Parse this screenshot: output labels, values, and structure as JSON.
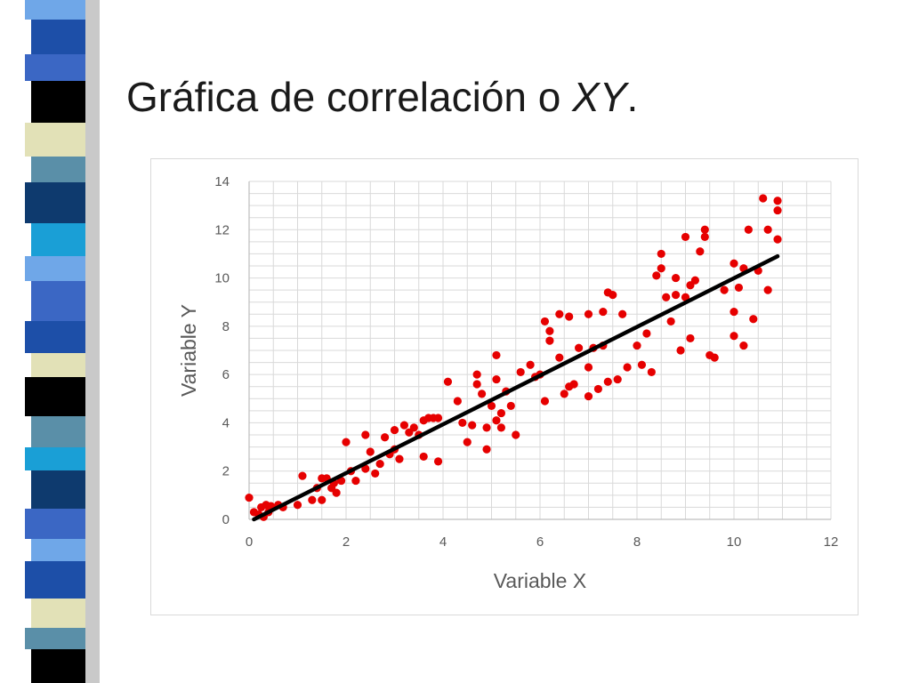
{
  "slide": {
    "title_main": "Gráfica de correlación o ",
    "title_italic": "XY",
    "title_end": "."
  },
  "colors": {
    "points": "#e60000",
    "trendline": "#000000",
    "grid": "#d9d9d9",
    "stripe": [
      "#3b67c4",
      "#6fa7e8",
      "#0e3a6e",
      "#1d4fa8",
      "#000000",
      "#e2e1b7",
      "#5a8fa8",
      "#1a9fd6"
    ]
  },
  "chart_data": {
    "type": "scatter",
    "xlabel": "Variable X",
    "ylabel": "Variable Y",
    "xlim": [
      0,
      12
    ],
    "ylim": [
      0,
      14
    ],
    "xticks": [
      "0",
      "2",
      "4",
      "6",
      "8",
      "10",
      "12"
    ],
    "yticks": [
      "0",
      "2",
      "4",
      "6",
      "8",
      "10",
      "12",
      "14"
    ],
    "grid": true,
    "legend": "none",
    "trendline": {
      "from": [
        0.1,
        0.0
      ],
      "to": [
        10.9,
        10.9
      ]
    },
    "points": [
      [
        0.0,
        0.9
      ],
      [
        0.1,
        0.3
      ],
      [
        0.2,
        0.2
      ],
      [
        0.25,
        0.5
      ],
      [
        0.3,
        0.1
      ],
      [
        0.35,
        0.6
      ],
      [
        0.4,
        0.3
      ],
      [
        0.45,
        0.55
      ],
      [
        0.6,
        0.6
      ],
      [
        0.7,
        0.5
      ],
      [
        1.0,
        0.6
      ],
      [
        1.1,
        1.8
      ],
      [
        1.3,
        0.8
      ],
      [
        1.4,
        1.3
      ],
      [
        1.5,
        0.8
      ],
      [
        1.5,
        1.7
      ],
      [
        1.6,
        1.7
      ],
      [
        1.7,
        1.3
      ],
      [
        1.75,
        1.5
      ],
      [
        1.8,
        1.1
      ],
      [
        1.9,
        1.6
      ],
      [
        2.0,
        3.2
      ],
      [
        2.1,
        2.0
      ],
      [
        2.2,
        1.6
      ],
      [
        2.4,
        2.1
      ],
      [
        2.4,
        3.5
      ],
      [
        2.5,
        2.8
      ],
      [
        2.6,
        1.9
      ],
      [
        2.7,
        2.3
      ],
      [
        2.8,
        3.4
      ],
      [
        2.9,
        2.7
      ],
      [
        3.0,
        3.7
      ],
      [
        3.0,
        2.9
      ],
      [
        3.1,
        2.5
      ],
      [
        3.2,
        3.9
      ],
      [
        3.3,
        3.6
      ],
      [
        3.4,
        3.8
      ],
      [
        3.5,
        3.5
      ],
      [
        3.6,
        2.6
      ],
      [
        3.6,
        4.1
      ],
      [
        3.7,
        4.2
      ],
      [
        3.8,
        4.2
      ],
      [
        3.9,
        4.2
      ],
      [
        3.9,
        2.4
      ],
      [
        4.1,
        5.7
      ],
      [
        4.3,
        4.9
      ],
      [
        4.4,
        4.0
      ],
      [
        4.5,
        3.2
      ],
      [
        4.6,
        3.9
      ],
      [
        4.7,
        5.6
      ],
      [
        4.7,
        6.0
      ],
      [
        4.8,
        5.2
      ],
      [
        4.9,
        2.9
      ],
      [
        4.9,
        3.8
      ],
      [
        5.0,
        4.7
      ],
      [
        5.1,
        4.1
      ],
      [
        5.1,
        5.8
      ],
      [
        5.1,
        6.8
      ],
      [
        5.2,
        4.4
      ],
      [
        5.2,
        3.8
      ],
      [
        5.3,
        5.3
      ],
      [
        5.4,
        4.7
      ],
      [
        5.5,
        3.5
      ],
      [
        5.6,
        6.1
      ],
      [
        5.8,
        6.4
      ],
      [
        5.9,
        5.9
      ],
      [
        6.0,
        6.0
      ],
      [
        6.1,
        8.2
      ],
      [
        6.1,
        4.9
      ],
      [
        6.2,
        7.8
      ],
      [
        6.2,
        7.4
      ],
      [
        6.4,
        6.7
      ],
      [
        6.4,
        8.5
      ],
      [
        6.5,
        5.2
      ],
      [
        6.6,
        8.4
      ],
      [
        6.6,
        5.5
      ],
      [
        6.7,
        5.6
      ],
      [
        6.8,
        7.1
      ],
      [
        7.0,
        8.5
      ],
      [
        7.0,
        5.1
      ],
      [
        7.0,
        6.3
      ],
      [
        7.1,
        7.1
      ],
      [
        7.2,
        5.4
      ],
      [
        7.3,
        8.6
      ],
      [
        7.3,
        7.2
      ],
      [
        7.4,
        9.4
      ],
      [
        7.4,
        5.7
      ],
      [
        7.5,
        9.3
      ],
      [
        7.6,
        5.8
      ],
      [
        7.7,
        8.5
      ],
      [
        7.8,
        6.3
      ],
      [
        8.0,
        7.2
      ],
      [
        8.1,
        6.4
      ],
      [
        8.2,
        7.7
      ],
      [
        8.3,
        6.1
      ],
      [
        8.4,
        10.1
      ],
      [
        8.5,
        11.0
      ],
      [
        8.5,
        10.4
      ],
      [
        8.6,
        9.2
      ],
      [
        8.7,
        8.2
      ],
      [
        8.8,
        10.0
      ],
      [
        8.8,
        9.3
      ],
      [
        8.9,
        7.0
      ],
      [
        9.0,
        9.2
      ],
      [
        9.0,
        11.7
      ],
      [
        9.1,
        9.7
      ],
      [
        9.1,
        7.5
      ],
      [
        9.2,
        9.9
      ],
      [
        9.3,
        11.1
      ],
      [
        9.4,
        11.7
      ],
      [
        9.4,
        12.0
      ],
      [
        9.5,
        6.8
      ],
      [
        9.6,
        6.7
      ],
      [
        9.8,
        9.5
      ],
      [
        10.0,
        10.6
      ],
      [
        10.0,
        8.6
      ],
      [
        10.0,
        7.6
      ],
      [
        10.1,
        9.6
      ],
      [
        10.2,
        10.4
      ],
      [
        10.2,
        7.2
      ],
      [
        10.3,
        12.0
      ],
      [
        10.4,
        8.3
      ],
      [
        10.5,
        10.3
      ],
      [
        10.6,
        13.3
      ],
      [
        10.7,
        9.5
      ],
      [
        10.7,
        12.0
      ],
      [
        10.9,
        13.2
      ],
      [
        10.9,
        12.8
      ],
      [
        10.9,
        11.6
      ]
    ]
  }
}
